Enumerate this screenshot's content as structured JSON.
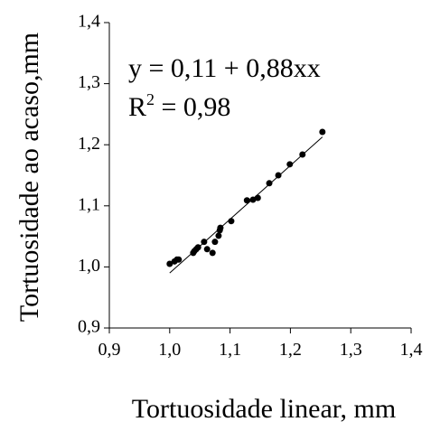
{
  "chart_data": {
    "type": "scatter",
    "x_label": "Tortuosidade linear, mm",
    "y_label": "Tortuosidade ao acaso,mm",
    "equation": "y = 0,11 + 0,88xx",
    "r2": {
      "base": "R",
      "sup": "2",
      "rest": " = 0,98"
    },
    "color": "#000000",
    "x": [
      1.0,
      1.008,
      1.012,
      1.015,
      1.039,
      1.041,
      1.044,
      1.047,
      1.057,
      1.062,
      1.071,
      1.075,
      1.081,
      1.083,
      1.084,
      1.102,
      1.128,
      1.138,
      1.146,
      1.165,
      1.18,
      1.199,
      1.22,
      1.253
    ],
    "values": [
      1.005,
      1.009,
      1.012,
      1.012,
      1.023,
      1.026,
      1.029,
      1.032,
      1.041,
      1.029,
      1.023,
      1.041,
      1.051,
      1.06,
      1.064,
      1.075,
      1.109,
      1.11,
      1.113,
      1.137,
      1.15,
      1.168,
      1.184,
      1.221
    ],
    "trendline": {
      "intercept": 0.11,
      "slope": 0.88,
      "x": [
        1.0,
        1.253
      ]
    },
    "xlim": [
      0.9,
      1.4
    ],
    "ylim": [
      0.9,
      1.4
    ],
    "xticks": [
      {
        "value": 0.9,
        "label": "0,9"
      },
      {
        "value": 1.0,
        "label": "1,0"
      },
      {
        "value": 1.1,
        "label": "1,1"
      },
      {
        "value": 1.2,
        "label": "1,2"
      },
      {
        "value": 1.3,
        "label": "1,3"
      },
      {
        "value": 1.4,
        "label": "1,4"
      }
    ],
    "yticks": [
      {
        "value": 0.9,
        "label": "0,9"
      },
      {
        "value": 1.0,
        "label": "1,0"
      },
      {
        "value": 1.1,
        "label": "1,1"
      },
      {
        "value": 1.2,
        "label": "1,2"
      },
      {
        "value": 1.3,
        "label": "1,3"
      },
      {
        "value": 1.4,
        "label": "1,4"
      }
    ],
    "grid": false
  }
}
